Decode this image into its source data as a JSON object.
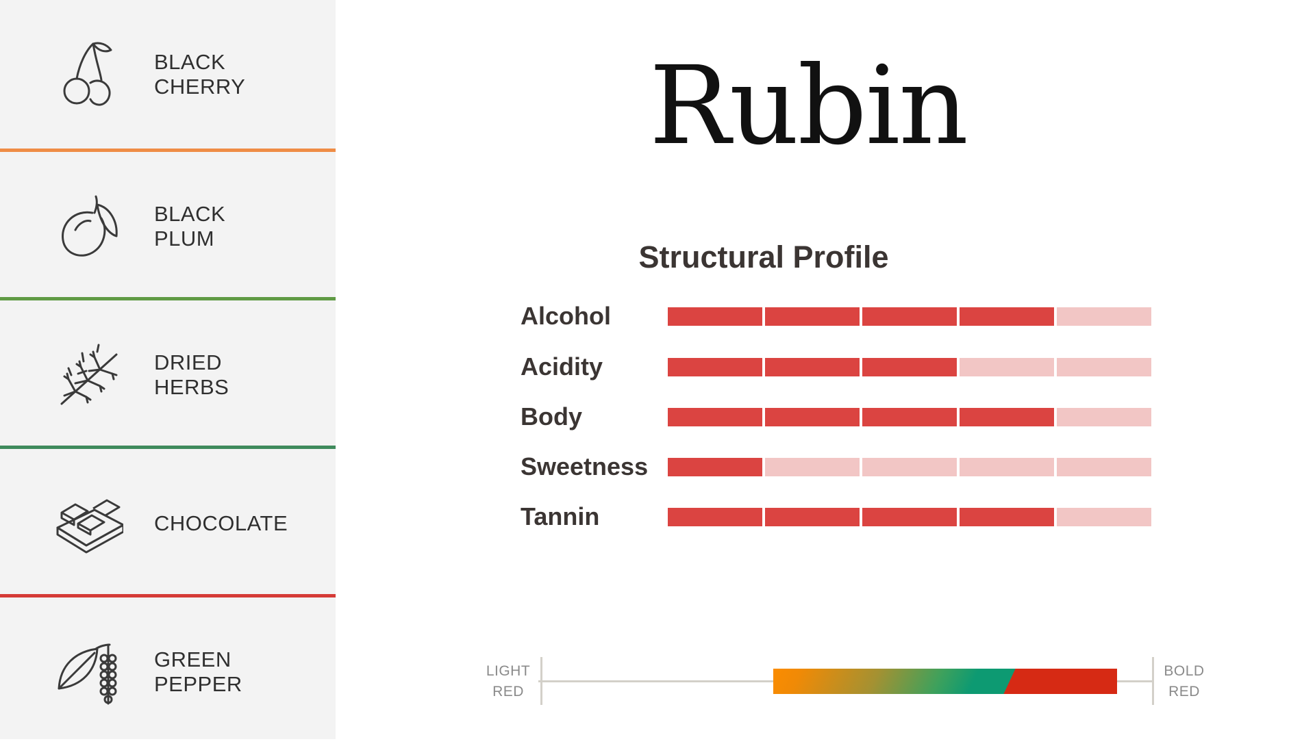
{
  "wine": {
    "name": "Rubin"
  },
  "tasting_notes": [
    {
      "lines": [
        "BLACK",
        "CHERRY"
      ],
      "icon": "cherry-icon",
      "divider_color": "#ef8c45"
    },
    {
      "lines": [
        "BLACK",
        "PLUM"
      ],
      "icon": "plum-icon",
      "divider_color": "#5f9a44"
    },
    {
      "lines": [
        "DRIED",
        "HERBS"
      ],
      "icon": "herbs-icon",
      "divider_color": "#3f8a5c"
    },
    {
      "lines": [
        "CHOCOLATE"
      ],
      "icon": "chocolate-icon",
      "divider_color": "#d53a36"
    },
    {
      "lines": [
        "GREEN",
        "PEPPER"
      ],
      "icon": "green-pepper-icon",
      "divider_color": null
    }
  ],
  "profile": {
    "title": "Structural Profile",
    "max_level": 5,
    "filled_color": "#db4441",
    "empty_color": "#f2c6c5",
    "metrics": [
      {
        "label": "Alcohol",
        "level": 4
      },
      {
        "label": "Acidity",
        "level": 3
      },
      {
        "label": "Body",
        "level": 4
      },
      {
        "label": "Sweetness",
        "level": 1
      },
      {
        "label": "Tannin",
        "level": 4
      }
    ]
  },
  "style_scale": {
    "left_label": [
      "LIGHT",
      "RED"
    ],
    "right_label": [
      "BOLD",
      "RED"
    ],
    "range_start": 0.38,
    "range_end": 0.94,
    "colors": [
      "#fb8c00",
      "#0d9a72",
      "#d62a14"
    ]
  }
}
